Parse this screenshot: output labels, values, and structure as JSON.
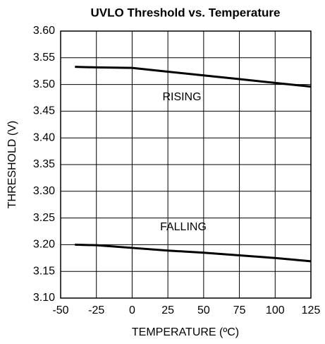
{
  "chart_data": {
    "type": "line",
    "title": "UVLO Threshold vs. Temperature",
    "x_label": "TEMPERATURE (ºC)",
    "y_label": "THRESHOLD (V)",
    "x": [
      -40,
      -25,
      0,
      25,
      50,
      75,
      100,
      125
    ],
    "series": [
      {
        "name": "RISING",
        "color": "#000000",
        "values": [
          3.533,
          3.532,
          3.531,
          3.524,
          3.517,
          3.51,
          3.503,
          3.496
        ]
      },
      {
        "name": "FALLING",
        "color": "#000000",
        "values": [
          3.2,
          3.199,
          3.194,
          3.189,
          3.185,
          3.18,
          3.175,
          3.169
        ]
      }
    ],
    "xlim": [
      -50,
      125
    ],
    "xticks": [
      -50,
      -25,
      0,
      25,
      50,
      75,
      100,
      125
    ],
    "ylim": [
      3.1,
      3.6
    ],
    "yticks": [
      {
        "value": 3.1,
        "label": "3.10"
      },
      3.15,
      {
        "value": 3.2,
        "label": "3.20"
      },
      3.25,
      {
        "value": 3.3,
        "label": "3.30"
      },
      3.35,
      {
        "value": 3.4,
        "label": "3.40"
      },
      3.45,
      {
        "value": 3.5,
        "label": "3.50"
      },
      3.55,
      {
        "value": 3.6,
        "label": "3.60"
      }
    ],
    "grid": true
  }
}
